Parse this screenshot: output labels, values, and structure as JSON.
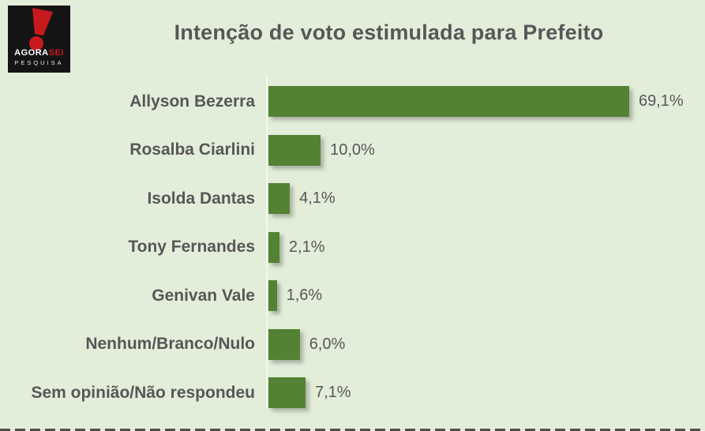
{
  "logo": {
    "brand_agora": "AGORA",
    "brand_sei": "SEI",
    "brand_line2": "PESQUISA"
  },
  "header": {
    "title": "Intenção de voto estimulada para Prefeito"
  },
  "colors": {
    "background": "#e3eeda",
    "bar": "#548235",
    "text": "#575757",
    "axis": "#f4f9ee",
    "logo_bg": "#141414",
    "logo_red": "#c8191f"
  },
  "chart_data": {
    "type": "bar",
    "orientation": "horizontal",
    "title": "Intenção de voto estimulada para Prefeito",
    "categories": [
      "Allyson Bezerra",
      "Rosalba Ciarlini",
      "Isolda Dantas",
      "Tony Fernandes",
      "Genivan Vale",
      "Nenhum/Branco/Nulo",
      "Sem opinião/Não respondeu"
    ],
    "values": [
      69.1,
      10.0,
      4.1,
      2.1,
      1.6,
      6.0,
      7.1
    ],
    "value_labels": [
      "69,1%",
      "10,0%",
      "4,1%",
      "2,1%",
      "1,6%",
      "6,0%",
      "7,1%"
    ],
    "xlabel": "",
    "ylabel": "",
    "xlim": [
      0,
      80
    ],
    "grid": false,
    "legend": false,
    "value_format": "percent, comma decimal (pt-BR)"
  }
}
